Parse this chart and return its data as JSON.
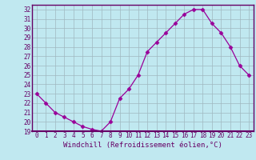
{
  "hours": [
    0,
    1,
    2,
    3,
    4,
    5,
    6,
    7,
    8,
    9,
    10,
    11,
    12,
    13,
    14,
    15,
    16,
    17,
    18,
    19,
    20,
    21,
    22,
    23
  ],
  "windchill": [
    23.0,
    22.0,
    21.0,
    20.5,
    20.0,
    19.5,
    19.2,
    19.0,
    20.0,
    22.5,
    23.5,
    25.0,
    27.5,
    28.5,
    29.5,
    30.5,
    31.5,
    32.0,
    32.0,
    30.5,
    29.5,
    28.0,
    26.0,
    25.0
  ],
  "line_color": "#990099",
  "marker": "D",
  "marker_size": 2.5,
  "bg_color": "#c0e8f0",
  "grid_color": "#a0b8c0",
  "ylim": [
    19,
    32.5
  ],
  "yticks": [
    19,
    20,
    21,
    22,
    23,
    24,
    25,
    26,
    27,
    28,
    29,
    30,
    31,
    32
  ],
  "xlabel": "Windchill (Refroidissement éolien,°C)",
  "axis_color": "#660066",
  "tick_color": "#660066",
  "label_color": "#660066",
  "tick_fontsize": 5.5,
  "xlabel_fontsize": 6.5
}
